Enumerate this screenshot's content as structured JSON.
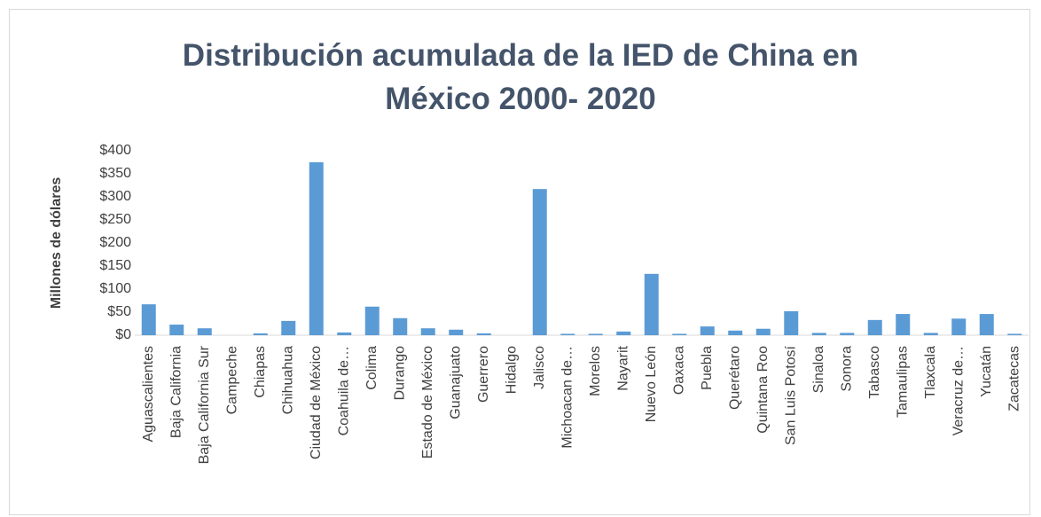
{
  "chart_data": {
    "type": "bar",
    "title": "Distribución acumulada de la IED de China en México 2000- 2020",
    "y_label": "Millones de dólares",
    "categories": [
      "Aguascalientes",
      "Baja California",
      "Baja California Sur",
      "Campeche",
      "Chiapas",
      "Chihuahua",
      "Ciudad de México",
      "Coahuila de…",
      "Colima",
      "Durango",
      "Estado de México",
      "Guanajuato",
      "Guerrero",
      "Hidalgo",
      "Jalisco",
      "Michoacan de…",
      "Morelos",
      "Nayarit",
      "Nuevo León",
      "Oaxaca",
      "Puebla",
      "Querétaro",
      "Quintana Roo",
      "San Luis Potosí",
      "Sinaloa",
      "Sonora",
      "Tabasco",
      "Tamaulipas",
      "Tlaxcala",
      "Veracruz de…",
      "Yucatán",
      "Zacatecas"
    ],
    "values": [
      67,
      23,
      15,
      0,
      4,
      31,
      375,
      6,
      62,
      37,
      15,
      12,
      4,
      0,
      317,
      3,
      3,
      8,
      133,
      3,
      19,
      10,
      14,
      52,
      5,
      5,
      33,
      46,
      5,
      36,
      46,
      3
    ],
    "color": "#5b9bd5",
    "ylim": [
      0,
      400
    ],
    "yticks": [
      {
        "value": 0,
        "label": "$0"
      },
      {
        "value": 50,
        "label": "$50"
      },
      {
        "value": 100,
        "label": "$100"
      },
      {
        "value": 150,
        "label": "$150"
      },
      {
        "value": 200,
        "label": "$200"
      },
      {
        "value": 250,
        "label": "$250"
      },
      {
        "value": 300,
        "label": "$300"
      },
      {
        "value": 350,
        "label": "$350"
      },
      {
        "value": 400,
        "label": "$400"
      }
    ],
    "grid": false
  }
}
